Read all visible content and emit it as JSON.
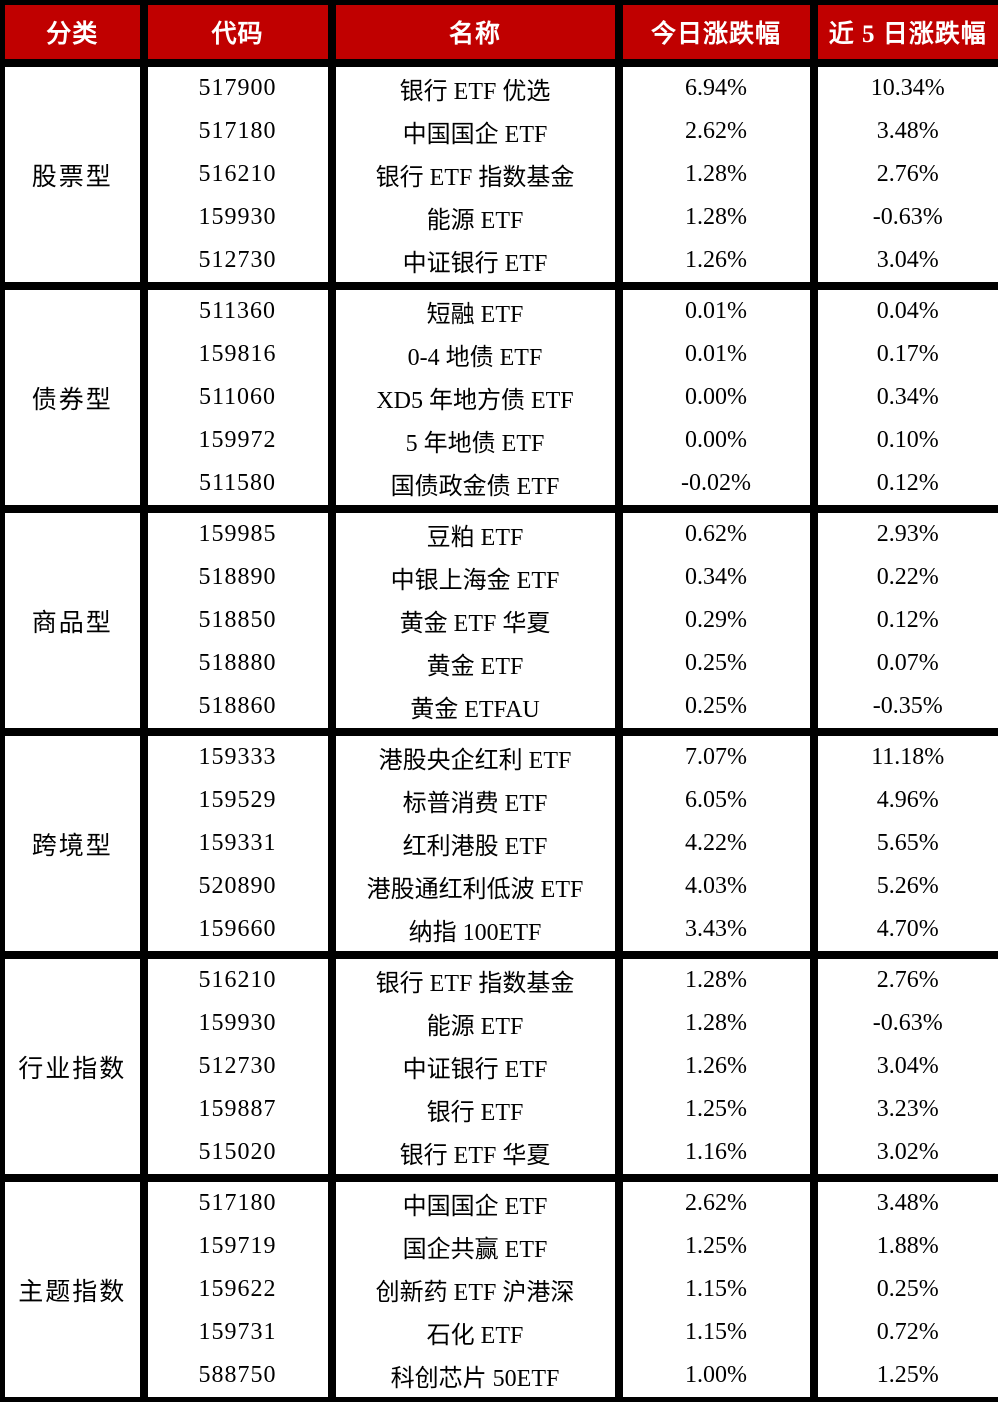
{
  "colors": {
    "header_bg": "#C00000",
    "header_text": "#FFFFFF",
    "border": "#000000",
    "body_bg": "#FFFFFF",
    "body_text": "#000000"
  },
  "table": {
    "headers": [
      "分类",
      "代码",
      "名称",
      "今日涨跌幅",
      "近 5 日涨跌幅"
    ],
    "groups": [
      {
        "category": "股票型",
        "rows": [
          {
            "code": "517900",
            "name": "银行 ETF 优选",
            "today": "6.94%",
            "five_day": "10.34%"
          },
          {
            "code": "517180",
            "name": "中国国企 ETF",
            "today": "2.62%",
            "five_day": "3.48%"
          },
          {
            "code": "516210",
            "name": "银行 ETF 指数基金",
            "today": "1.28%",
            "five_day": "2.76%"
          },
          {
            "code": "159930",
            "name": "能源 ETF",
            "today": "1.28%",
            "five_day": "-0.63%"
          },
          {
            "code": "512730",
            "name": "中证银行 ETF",
            "today": "1.26%",
            "five_day": "3.04%"
          }
        ]
      },
      {
        "category": "债券型",
        "rows": [
          {
            "code": "511360",
            "name": "短融 ETF",
            "today": "0.01%",
            "five_day": "0.04%"
          },
          {
            "code": "159816",
            "name": "0-4 地债 ETF",
            "today": "0.01%",
            "five_day": "0.17%"
          },
          {
            "code": "511060",
            "name": "XD5 年地方债 ETF",
            "today": "0.00%",
            "five_day": "0.34%"
          },
          {
            "code": "159972",
            "name": "5 年地债 ETF",
            "today": "0.00%",
            "five_day": "0.10%"
          },
          {
            "code": "511580",
            "name": "国债政金债 ETF",
            "today": "-0.02%",
            "five_day": "0.12%"
          }
        ]
      },
      {
        "category": "商品型",
        "rows": [
          {
            "code": "159985",
            "name": "豆粕 ETF",
            "today": "0.62%",
            "five_day": "2.93%"
          },
          {
            "code": "518890",
            "name": "中银上海金 ETF",
            "today": "0.34%",
            "five_day": "0.22%"
          },
          {
            "code": "518850",
            "name": "黄金 ETF 华夏",
            "today": "0.29%",
            "five_day": "0.12%"
          },
          {
            "code": "518880",
            "name": "黄金 ETF",
            "today": "0.25%",
            "five_day": "0.07%"
          },
          {
            "code": "518860",
            "name": "黄金 ETFAU",
            "today": "0.25%",
            "five_day": "-0.35%"
          }
        ]
      },
      {
        "category": "跨境型",
        "rows": [
          {
            "code": "159333",
            "name": "港股央企红利 ETF",
            "today": "7.07%",
            "five_day": "11.18%"
          },
          {
            "code": "159529",
            "name": "标普消费 ETF",
            "today": "6.05%",
            "five_day": "4.96%"
          },
          {
            "code": "159331",
            "name": "红利港股 ETF",
            "today": "4.22%",
            "five_day": "5.65%"
          },
          {
            "code": "520890",
            "name": "港股通红利低波 ETF",
            "today": "4.03%",
            "five_day": "5.26%"
          },
          {
            "code": "159660",
            "name": "纳指 100ETF",
            "today": "3.43%",
            "five_day": "4.70%"
          }
        ]
      },
      {
        "category": "行业指数",
        "rows": [
          {
            "code": "516210",
            "name": "银行 ETF 指数基金",
            "today": "1.28%",
            "five_day": "2.76%"
          },
          {
            "code": "159930",
            "name": "能源 ETF",
            "today": "1.28%",
            "five_day": "-0.63%"
          },
          {
            "code": "512730",
            "name": "中证银行 ETF",
            "today": "1.26%",
            "five_day": "3.04%"
          },
          {
            "code": "159887",
            "name": "银行 ETF",
            "today": "1.25%",
            "five_day": "3.23%"
          },
          {
            "code": "515020",
            "name": "银行 ETF 华夏",
            "today": "1.16%",
            "five_day": "3.02%"
          }
        ]
      },
      {
        "category": "主题指数",
        "rows": [
          {
            "code": "517180",
            "name": "中国国企 ETF",
            "today": "2.62%",
            "five_day": "3.48%"
          },
          {
            "code": "159719",
            "name": "国企共赢 ETF",
            "today": "1.25%",
            "five_day": "1.88%"
          },
          {
            "code": "159622",
            "name": "创新药 ETF 沪港深",
            "today": "1.15%",
            "five_day": "0.25%"
          },
          {
            "code": "159731",
            "name": "石化 ETF",
            "today": "1.15%",
            "five_day": "0.72%"
          },
          {
            "code": "588750",
            "name": "科创芯片 50ETF",
            "today": "1.00%",
            "five_day": "1.25%"
          }
        ]
      }
    ]
  }
}
